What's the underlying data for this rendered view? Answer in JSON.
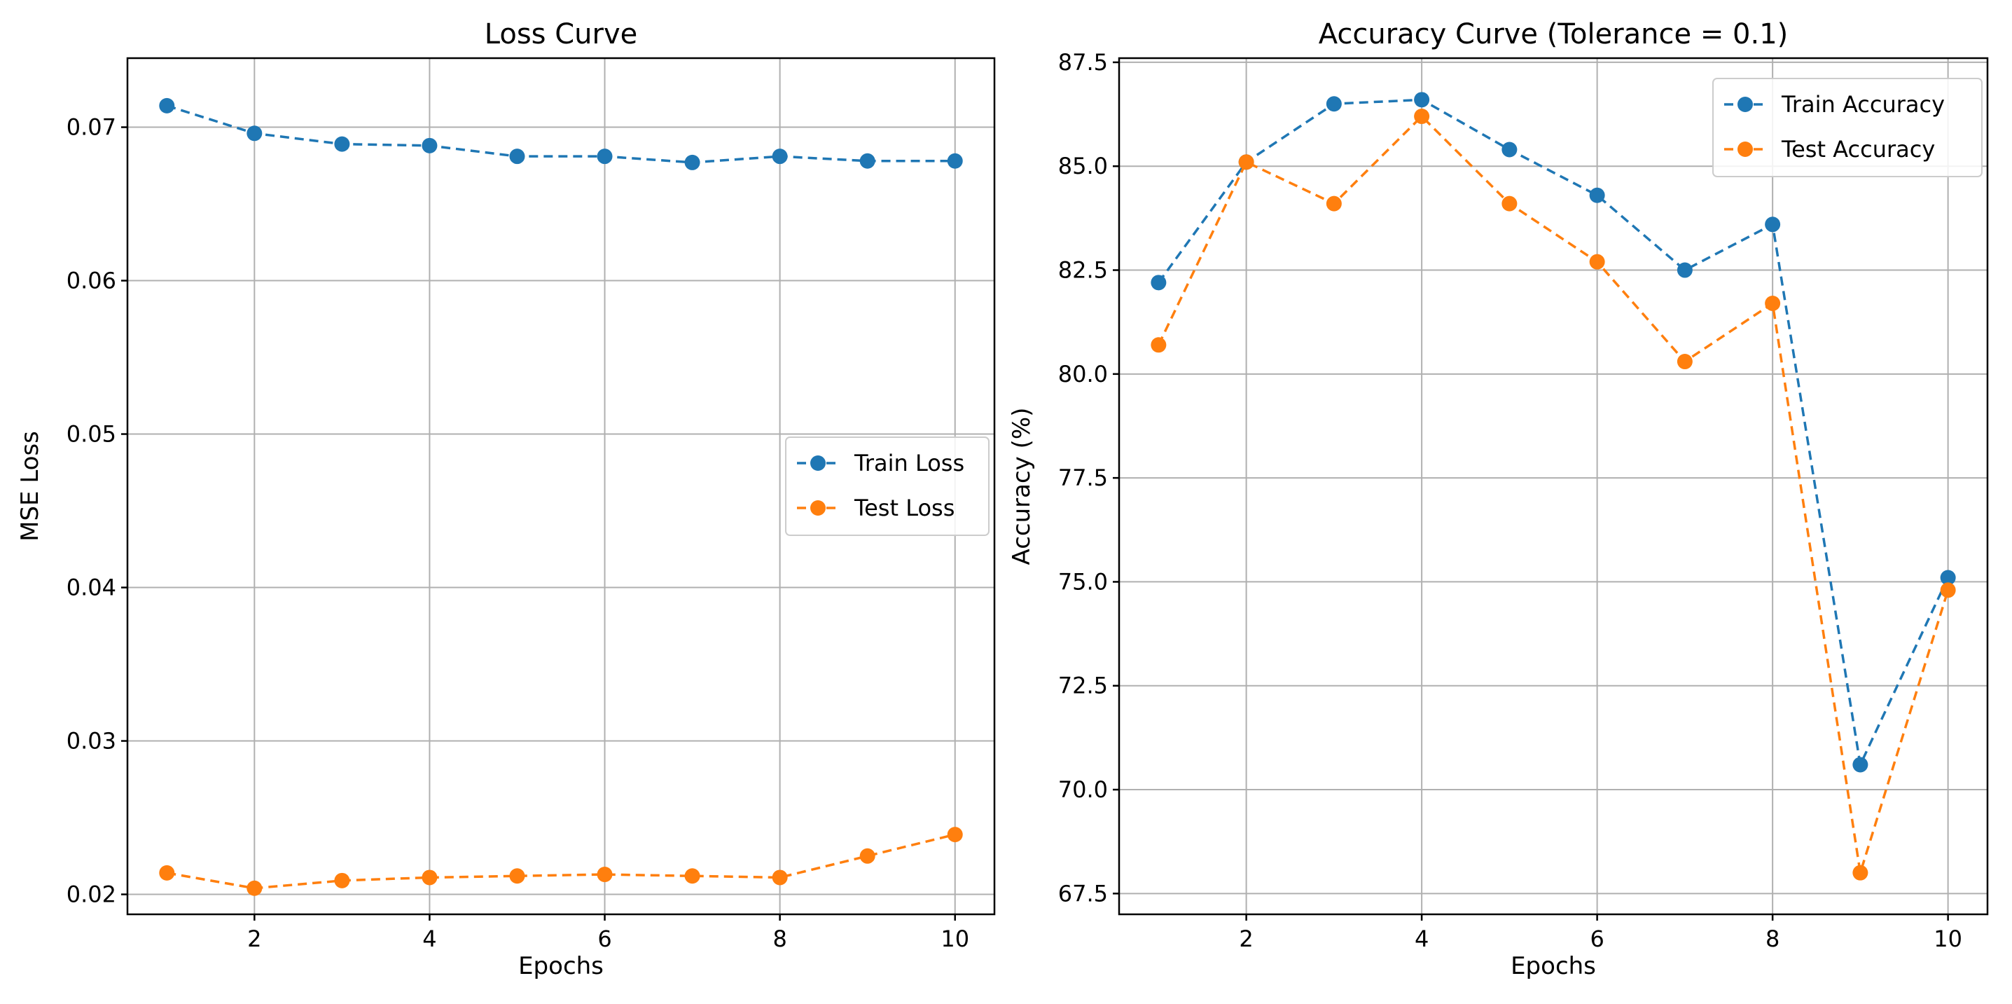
{
  "chart_data": [
    {
      "type": "line",
      "title": "Loss Curve",
      "xlabel": "Epochs",
      "ylabel": "MSE Loss",
      "x": [
        1,
        2,
        3,
        4,
        5,
        6,
        7,
        8,
        9,
        10
      ],
      "xlim": [
        0.55,
        10.45
      ],
      "ylim": [
        0.0187,
        0.0745
      ],
      "xticks": [
        2,
        4,
        6,
        8,
        10
      ],
      "yticks": [
        0.02,
        0.03,
        0.04,
        0.05,
        0.06,
        0.07
      ],
      "ytick_labels": [
        "0.02",
        "0.03",
        "0.04",
        "0.05",
        "0.06",
        "0.07"
      ],
      "grid": true,
      "legend_position": "center-right",
      "series": [
        {
          "name": "Train Loss",
          "color": "#1f77b4",
          "linestyle": "dashed",
          "marker": "circle",
          "values": [
            0.0714,
            0.0696,
            0.0689,
            0.0688,
            0.0681,
            0.0681,
            0.0677,
            0.0681,
            0.0678,
            0.0678
          ]
        },
        {
          "name": "Test Loss",
          "color": "#ff7f0e",
          "linestyle": "dashed",
          "marker": "circle",
          "values": [
            0.0214,
            0.0204,
            0.0209,
            0.0211,
            0.0212,
            0.0213,
            0.0212,
            0.0211,
            0.0225,
            0.0239
          ]
        }
      ]
    },
    {
      "type": "line",
      "title": "Accuracy Curve (Tolerance = 0.1)",
      "xlabel": "Epochs",
      "ylabel": "Accuracy (%)",
      "x": [
        1,
        2,
        3,
        4,
        5,
        6,
        7,
        8,
        9,
        10
      ],
      "xlim": [
        0.55,
        10.45
      ],
      "ylim": [
        67.0,
        87.6
      ],
      "xticks": [
        2,
        4,
        6,
        8,
        10
      ],
      "yticks": [
        67.5,
        70.0,
        72.5,
        75.0,
        77.5,
        80.0,
        82.5,
        85.0,
        87.5
      ],
      "ytick_labels": [
        "67.5",
        "70.0",
        "72.5",
        "75.0",
        "77.5",
        "80.0",
        "82.5",
        "85.0",
        "87.5"
      ],
      "grid": true,
      "legend_position": "top-right",
      "series": [
        {
          "name": "Train Accuracy",
          "color": "#1f77b4",
          "linestyle": "dashed",
          "marker": "circle",
          "values": [
            82.2,
            85.1,
            86.5,
            86.6,
            85.4,
            84.3,
            82.5,
            83.6,
            70.6,
            75.1
          ]
        },
        {
          "name": "Test Accuracy",
          "color": "#ff7f0e",
          "linestyle": "dashed",
          "marker": "circle",
          "values": [
            80.7,
            85.1,
            84.1,
            86.2,
            84.1,
            82.7,
            80.3,
            81.7,
            68.0,
            74.8
          ]
        }
      ]
    }
  ]
}
